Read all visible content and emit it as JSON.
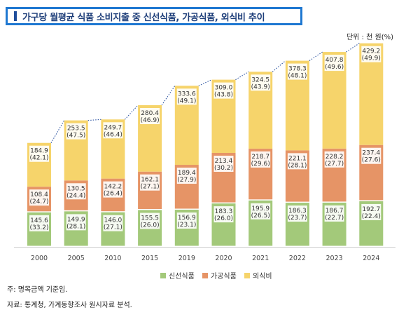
{
  "title": "가구당 월평균 식품 소비지출 중 신선식품, 가공식품, 외식비 추이",
  "unit_label": "단위 : 천 원(%)",
  "notes": [
    "주: 명목금액 기준임.",
    "자료: 통계청, 가계동향조사 원시자료 분석."
  ],
  "colors": {
    "fresh": "#a3c97a",
    "processed": "#e69466",
    "dining": "#f6d46b",
    "connector": "#2f56a3"
  },
  "chart_data": {
    "type": "bar",
    "stacked": true,
    "categories": [
      "2000",
      "2005",
      "2010",
      "2015",
      "2019",
      "2020",
      "2021",
      "2022",
      "2023",
      "2024"
    ],
    "ylim": [
      0,
      860
    ],
    "grid": false,
    "legend_position": "bottom",
    "series": [
      {
        "name": "신선식품",
        "color": "#a3c97a",
        "values": [
          145.6,
          149.9,
          146.0,
          155.5,
          156.9,
          183.3,
          195.9,
          186.3,
          186.7,
          192.7
        ],
        "shares": [
          "(33.2)",
          "(28.1)",
          "(27.1)",
          "(26.0)",
          "(23.1)",
          "(26.0)",
          "(26.5)",
          "(23.7)",
          "(22.7)",
          "(22.4)"
        ]
      },
      {
        "name": "가공식품",
        "color": "#e69466",
        "values": [
          108.4,
          130.5,
          142.2,
          162.1,
          189.4,
          213.4,
          218.7,
          221.1,
          228.2,
          237.4
        ],
        "shares": [
          "(24.7)",
          "(24.4)",
          "(26.4)",
          "(27.1)",
          "(27.9)",
          "(30.2)",
          "(29.6)",
          "(28.1)",
          "(27.7)",
          "(27.6)"
        ]
      },
      {
        "name": "외식비",
        "color": "#f6d46b",
        "values": [
          184.9,
          253.5,
          249.7,
          280.4,
          333.6,
          309.0,
          324.5,
          378.3,
          407.8,
          429.2
        ],
        "shares": [
          "(42.1)",
          "(47.5)",
          "(46.4)",
          "(46.9)",
          "(49.1)",
          "(43.8)",
          "(43.9)",
          "(48.1)",
          "(49.6)",
          "(49.9)"
        ]
      }
    ]
  }
}
